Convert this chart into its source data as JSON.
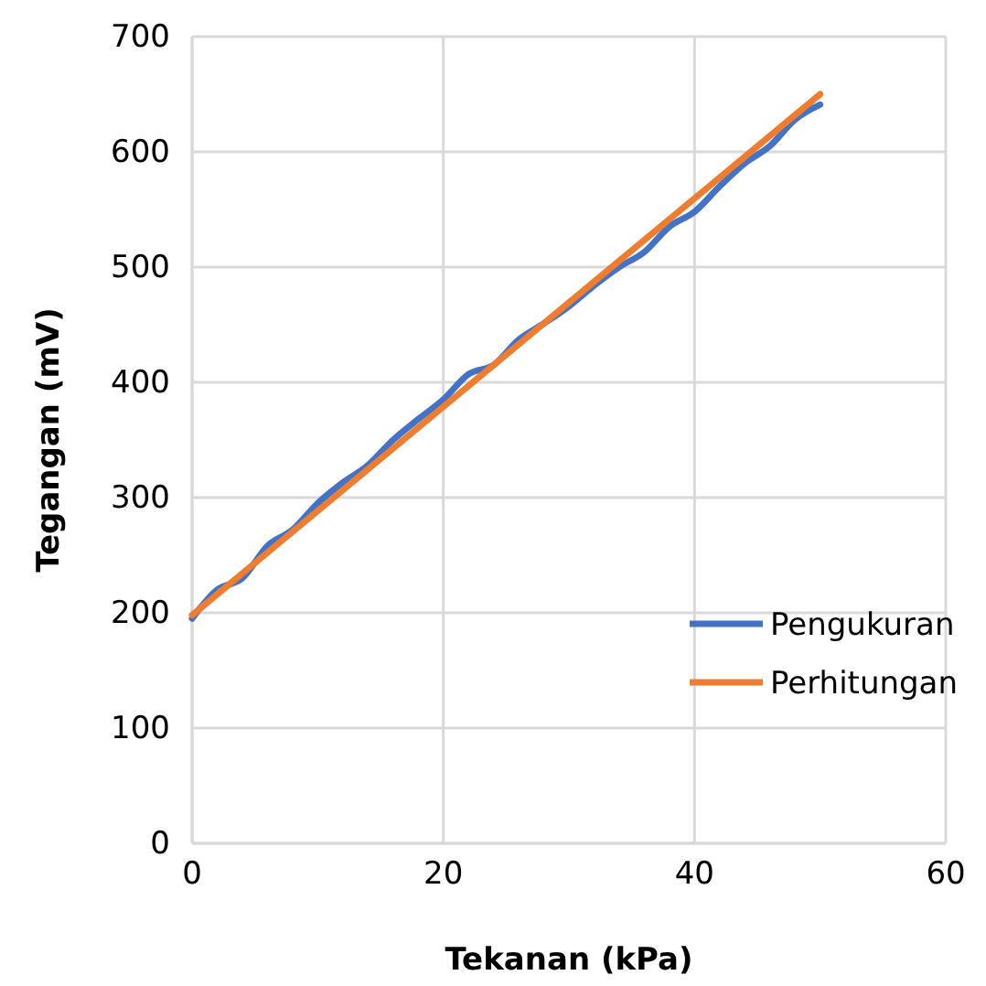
{
  "chart_data": {
    "type": "line",
    "xlabel": "Tekanan (kPa)",
    "ylabel": "Tegangan (mV)",
    "xlim": [
      0,
      60
    ],
    "xticks": [
      0,
      20,
      40,
      60
    ],
    "ylim": [
      0,
      700
    ],
    "yticks": [
      0,
      100,
      200,
      300,
      400,
      500,
      600,
      700
    ],
    "grid": true,
    "legend": "bottom right",
    "marker": "none",
    "line_style": "solid",
    "series": [
      {
        "name": "Pengukuran",
        "color": "#4472c4",
        "x": [
          0,
          2,
          4,
          6,
          8,
          10,
          12,
          14,
          16,
          18,
          20,
          22,
          24,
          26,
          28,
          30,
          32,
          34,
          36,
          38,
          40,
          42,
          44,
          46,
          48,
          50
        ],
        "values": [
          195,
          220,
          230,
          258,
          272,
          295,
          313,
          328,
          350,
          368,
          385,
          407,
          415,
          437,
          451,
          466,
          484,
          500,
          513,
          535,
          548,
          570,
          590,
          605,
          628,
          641
        ]
      },
      {
        "name": "Perhitungan",
        "color": "#ed7d31",
        "x": [
          0,
          50
        ],
        "values": [
          198,
          650
        ]
      }
    ]
  }
}
